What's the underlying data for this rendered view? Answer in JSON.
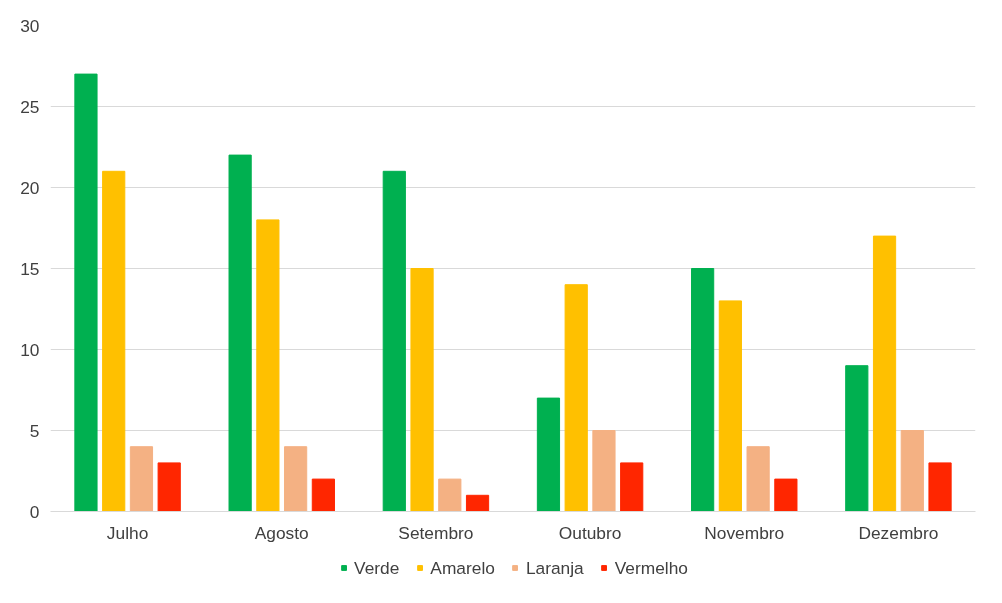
{
  "chart_data": {
    "type": "bar",
    "categories": [
      "Julho",
      "Agosto",
      "Setembro",
      "Outubro",
      "Novembro",
      "Dezembro"
    ],
    "series": [
      {
        "name": "Verde",
        "color": "#00b050",
        "values": [
          27,
          22,
          21,
          7,
          15,
          9
        ]
      },
      {
        "name": "Amarelo",
        "color": "#ffc000",
        "values": [
          21,
          18,
          15,
          14,
          13,
          17
        ]
      },
      {
        "name": "Laranja",
        "color": "#f4b183",
        "values": [
          4,
          4,
          2,
          5,
          4,
          5
        ]
      },
      {
        "name": "Vermelho",
        "color": "#ff2600",
        "values": [
          3,
          2,
          1,
          3,
          2,
          3
        ]
      }
    ],
    "ylim": [
      0,
      30
    ],
    "yticks": [
      0,
      5,
      10,
      15,
      20,
      25,
      30
    ],
    "grid": "y",
    "legend": "bottom"
  }
}
